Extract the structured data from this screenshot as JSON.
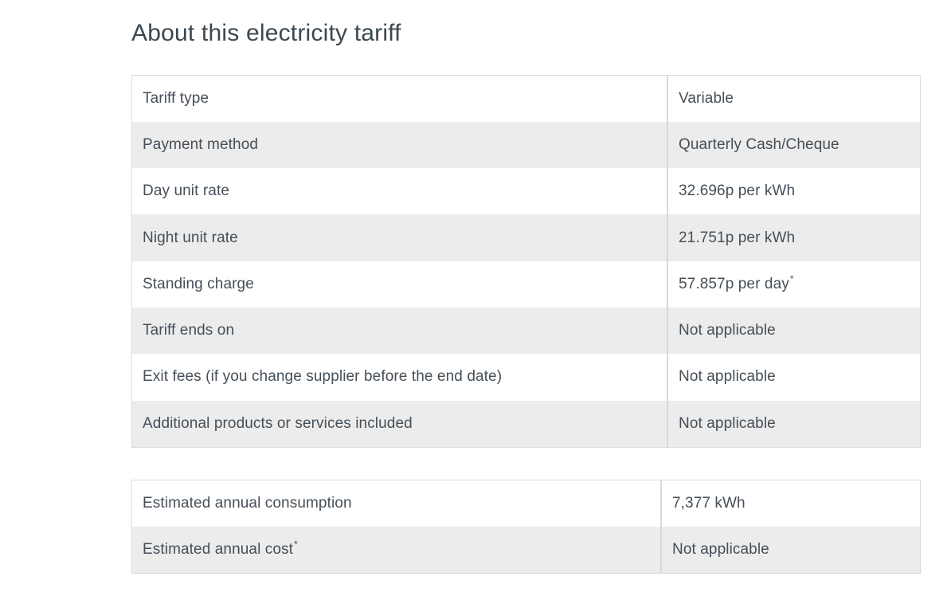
{
  "page": {
    "title": "About this electricity tariff"
  },
  "colors": {
    "text": "#454f58",
    "title_text": "#3c4750",
    "row_alt_bg": "#ececec",
    "divider": "#d8d8d8",
    "table_border": "#dbdbdb"
  },
  "tariff_table": {
    "rows": [
      {
        "label": "Tariff type",
        "label_sup": "",
        "value": "Variable",
        "value_sup": ""
      },
      {
        "label": "Payment method",
        "label_sup": "",
        "value": "Quarterly Cash/Cheque",
        "value_sup": ""
      },
      {
        "label": "Day unit rate",
        "label_sup": "",
        "value": "32.696p per kWh",
        "value_sup": ""
      },
      {
        "label": "Night unit rate",
        "label_sup": "",
        "value": "21.751p per kWh",
        "value_sup": ""
      },
      {
        "label": "Standing charge",
        "label_sup": "",
        "value": "57.857p per day",
        "value_sup": "*"
      },
      {
        "label": "Tariff ends on",
        "label_sup": "",
        "value": "Not applicable",
        "value_sup": ""
      },
      {
        "label": "Exit fees (if you change supplier before the end date)",
        "label_sup": "",
        "value": "Not applicable",
        "value_sup": ""
      },
      {
        "label": "Additional products or services included",
        "label_sup": "",
        "value": "Not applicable",
        "value_sup": ""
      }
    ]
  },
  "estimate_table": {
    "rows": [
      {
        "label": "Estimated annual consumption",
        "label_sup": "",
        "value": "7,377 kWh",
        "value_sup": ""
      },
      {
        "label": "Estimated annual cost",
        "label_sup": "*",
        "value": "Not applicable",
        "value_sup": ""
      }
    ]
  }
}
